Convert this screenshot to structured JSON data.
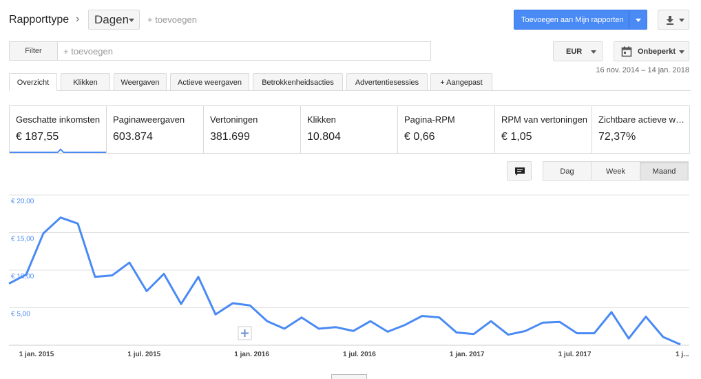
{
  "header": {
    "report_type_label": "Rapporttype",
    "breadcrumb_separator": "›",
    "dimension_selected": "Dagen",
    "add_dimension": "+ toevoegen",
    "add_to_reports_label": "Toevoegen aan Mijn rapporten"
  },
  "icons": {
    "chevron": "chevron-right-icon",
    "download": "download-icon",
    "calendar": "calendar-icon",
    "annotation": "comment-icon",
    "add_annotation": "plus-icon"
  },
  "filter": {
    "button_label": "Filter",
    "placeholder": "+ toevoegen"
  },
  "controls": {
    "currency": "EUR",
    "date_range_label": "Onbeperkt",
    "date_range_text": "16 nov. 2014 – 14 jan. 2018"
  },
  "tabs": [
    {
      "label": "Overzicht",
      "active": true
    },
    {
      "label": "Klikken",
      "active": false
    },
    {
      "label": "Weergaven",
      "active": false
    },
    {
      "label": "Actieve weergaven",
      "active": false
    },
    {
      "label": "Betrokkenheidsacties",
      "active": false
    },
    {
      "label": "Advertentiesessies",
      "active": false
    },
    {
      "label": "+ Aangepast",
      "active": false
    }
  ],
  "metrics": [
    {
      "name": "Geschatte inkomsten",
      "value": "€ 187,55",
      "active": true
    },
    {
      "name": "Paginaweergaven",
      "value": "603.874"
    },
    {
      "name": "Vertoningen",
      "value": "381.699"
    },
    {
      "name": "Klikken",
      "value": "10.804"
    },
    {
      "name": "Pagina-RPM",
      "value": "€ 0,66"
    },
    {
      "name": "RPM van vertoningen",
      "value": "€ 1,05"
    },
    {
      "name": "Zichtbare actieve weergaven",
      "value": "72,37%"
    }
  ],
  "granularity": {
    "day": "Dag",
    "week": "Week",
    "month": "Maand",
    "selected": "Maand"
  },
  "colors": {
    "accent": "#4a8af4",
    "axis_label": "#4a8af4"
  },
  "chart_data": {
    "type": "line",
    "ylim": [
      0,
      20
    ],
    "yticks": [
      5,
      10,
      15,
      20
    ],
    "ytick_labels": [
      "€ 5,00",
      "€ 10,00",
      "€ 15,00",
      "€ 20,00"
    ],
    "xtick_labels": [
      "1 jan. 2015",
      "1 jul. 2015",
      "1 jan. 2016",
      "1 jul. 2016",
      "1 jan. 2017",
      "1 jul. 2017",
      "1 j..."
    ],
    "grid": true,
    "series": [
      {
        "values": [
          8.2,
          9.4,
          14.9,
          17.0,
          16.2,
          9.1,
          9.3,
          11.0,
          7.2,
          9.5,
          5.5,
          9.1,
          4.1,
          5.6,
          5.3,
          3.2,
          2.2,
          3.7,
          2.2,
          2.4,
          1.9,
          3.2,
          1.8,
          2.7,
          3.9,
          3.7,
          1.7,
          1.5,
          3.2,
          1.4,
          1.9,
          3.0,
          3.1,
          1.6,
          1.6,
          4.4,
          0.9,
          3.8,
          1.1,
          0.1
        ]
      }
    ]
  }
}
